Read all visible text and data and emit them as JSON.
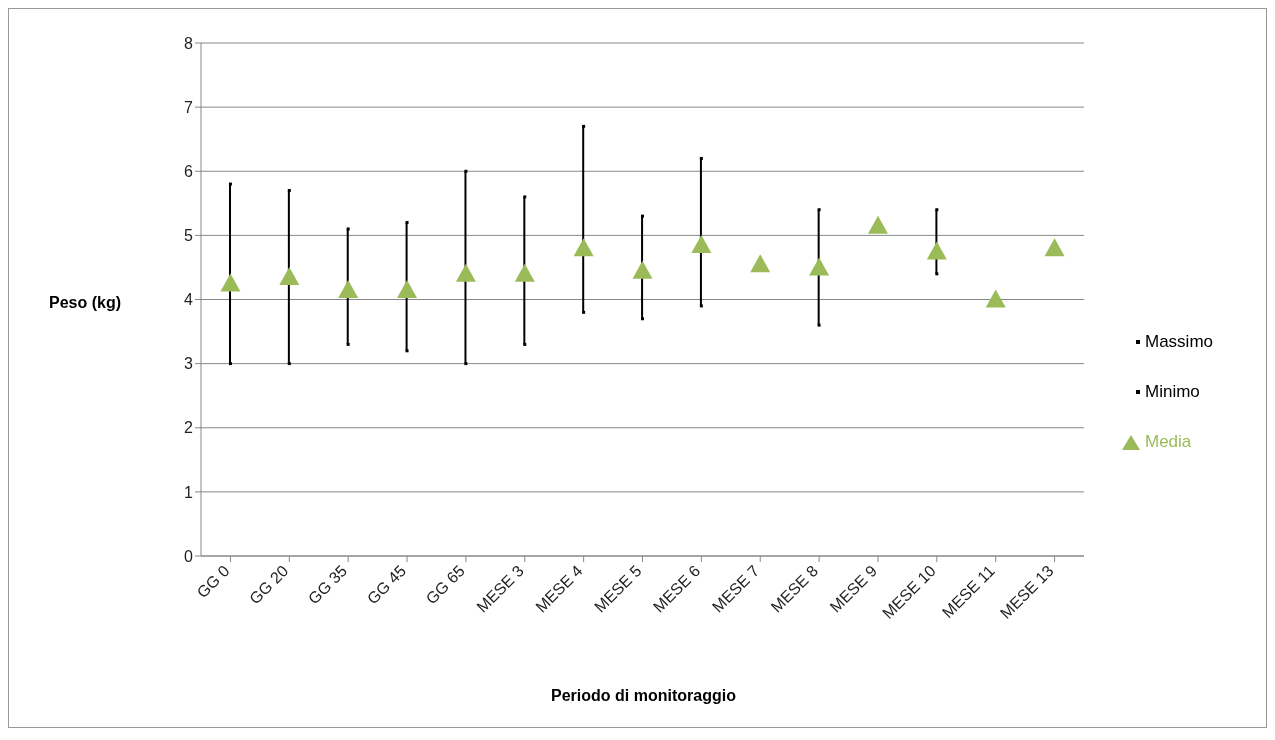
{
  "chart_data": {
    "type": "scatter",
    "xlabel": "Periodo di monitoraggio",
    "ylabel": "Peso (kg)",
    "categories": [
      "GG 0",
      "GG 20",
      "GG 35",
      "GG 45",
      "GG 65",
      "MESE 3",
      "MESE 4",
      "MESE 5",
      "MESE 6",
      "MESE 7",
      "MESE 8",
      "MESE 9",
      "MESE 10",
      "MESE 11",
      "MESE 13"
    ],
    "series": [
      {
        "name": "Massimo",
        "color": "#000000",
        "marker": "square",
        "values": [
          5.8,
          5.7,
          5.1,
          5.2,
          6.0,
          5.6,
          6.7,
          5.3,
          6.2,
          null,
          5.4,
          null,
          5.4,
          null,
          null
        ]
      },
      {
        "name": "Minimo",
        "color": "#000000",
        "marker": "square",
        "values": [
          3.0,
          3.0,
          3.3,
          3.2,
          3.0,
          3.3,
          3.8,
          3.7,
          3.9,
          null,
          3.6,
          null,
          4.4,
          null,
          null
        ]
      },
      {
        "name": "Media",
        "color": "#9bbb59",
        "marker": "triangle",
        "values": [
          4.25,
          4.35,
          4.15,
          4.15,
          4.4,
          4.4,
          4.8,
          4.45,
          4.85,
          4.55,
          4.5,
          5.15,
          4.75,
          4.0,
          4.8
        ]
      }
    ],
    "ylim": [
      0,
      8
    ],
    "yticks": [
      0,
      1,
      2,
      3,
      4,
      5,
      6,
      7,
      8
    ],
    "grid": "y",
    "legend": "right"
  }
}
